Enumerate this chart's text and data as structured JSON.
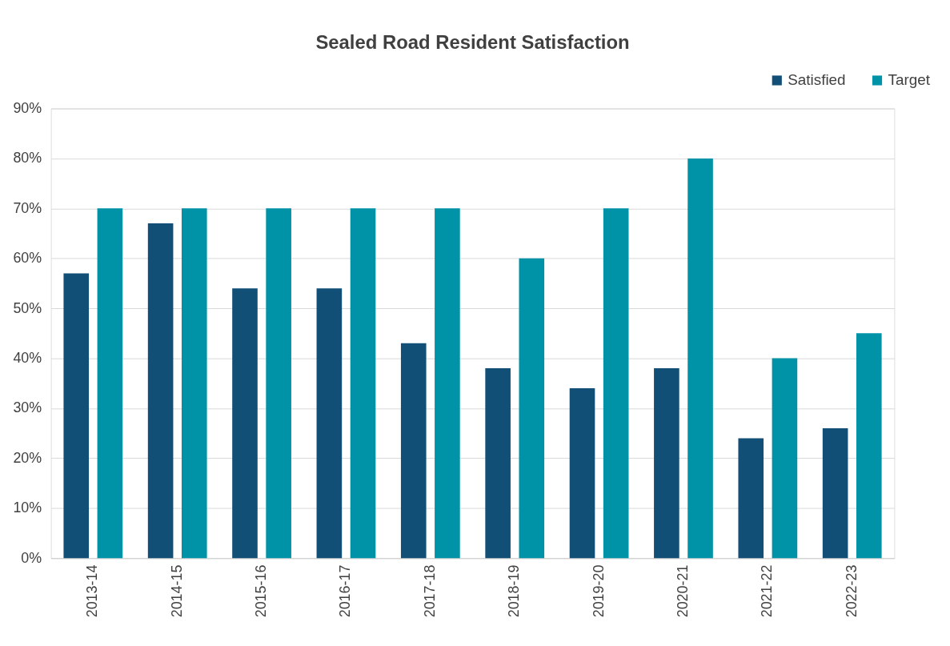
{
  "chart_data": {
    "type": "bar",
    "title": "Sealed Road Resident Satisfaction",
    "categories": [
      "2013-14",
      "2014-15",
      "2015-16",
      "2016-17",
      "2017-18",
      "2018-19",
      "2019-20",
      "2020-21",
      "2021-22",
      "2022-23"
    ],
    "series": [
      {
        "name": "Satisfied",
        "color": "#114f77",
        "values": [
          57,
          67,
          54,
          54,
          43,
          38,
          34,
          38,
          24,
          26
        ]
      },
      {
        "name": "Target",
        "color": "#0093a8",
        "values": [
          70,
          70,
          70,
          70,
          70,
          60,
          70,
          80,
          40,
          45
        ]
      }
    ],
    "ylim": [
      0,
      90
    ],
    "yticks": [
      {
        "value": 0,
        "label": "0%"
      },
      {
        "value": 10,
        "label": "10%"
      },
      {
        "value": 20,
        "label": "20%"
      },
      {
        "value": 30,
        "label": "30%"
      },
      {
        "value": 40,
        "label": "40%"
      },
      {
        "value": 50,
        "label": "50%"
      },
      {
        "value": 60,
        "label": "60%"
      },
      {
        "value": 70,
        "label": "70%"
      },
      {
        "value": 80,
        "label": "80%"
      },
      {
        "value": 90,
        "label": "90%"
      }
    ],
    "grid": "y",
    "legend": "top right"
  }
}
